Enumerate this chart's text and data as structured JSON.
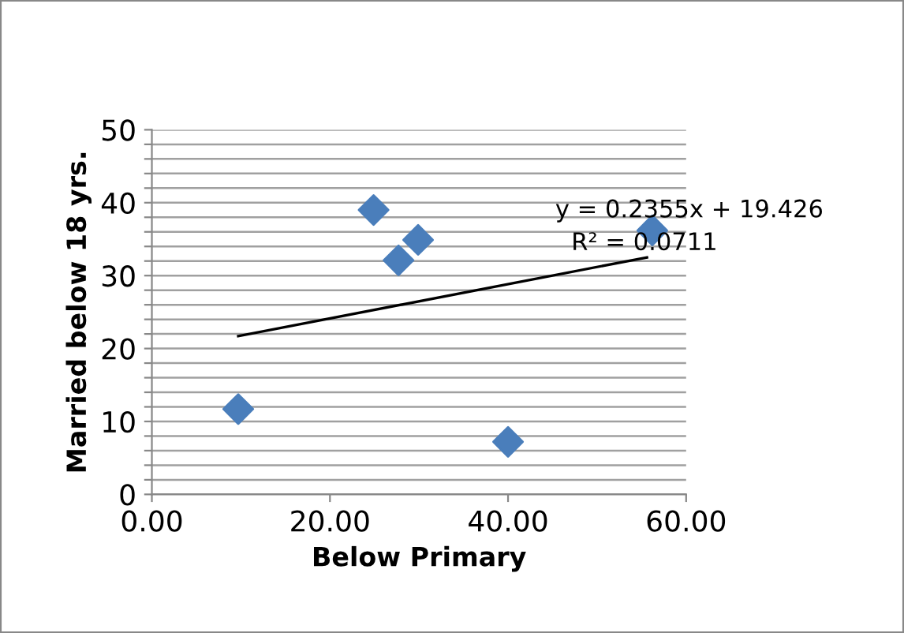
{
  "chart_data": {
    "type": "scatter",
    "xlabel": "Below Primary",
    "ylabel": "Married below 18 yrs.",
    "marker": "diamond",
    "grid": "y",
    "xlim": [
      0,
      60
    ],
    "xticks": [
      {
        "value": 0,
        "label": "0.00"
      },
      {
        "value": 20,
        "label": "20.00"
      },
      {
        "value": 40,
        "label": "40.00"
      },
      {
        "value": 60,
        "label": "60.00"
      }
    ],
    "ylim": [
      0,
      50
    ],
    "yticks": [
      0,
      {
        "value": 2,
        "label": null
      },
      {
        "value": 4,
        "label": null
      },
      {
        "value": 6,
        "label": null
      },
      {
        "value": 8,
        "label": null
      },
      10,
      {
        "value": 12,
        "label": null
      },
      {
        "value": 14,
        "label": null
      },
      {
        "value": 16,
        "label": null
      },
      {
        "value": 18,
        "label": null
      },
      20,
      {
        "value": 22,
        "label": null
      },
      {
        "value": 24,
        "label": null
      },
      {
        "value": 26,
        "label": null
      },
      {
        "value": 28,
        "label": null
      },
      30,
      {
        "value": 32,
        "label": null
      },
      {
        "value": 34,
        "label": null
      },
      {
        "value": 36,
        "label": null
      },
      {
        "value": 38,
        "label": null
      },
      40,
      {
        "value": 42,
        "label": null
      },
      {
        "value": 44,
        "label": null
      },
      {
        "value": 46,
        "label": null
      },
      {
        "value": 48,
        "label": null
      },
      50
    ],
    "series": [
      {
        "color": "#4a7ebb",
        "x": [
          9.7,
          24.9,
          27.7,
          29.9,
          40.0,
          56.2
        ],
        "values": [
          11.7,
          39.0,
          32.1,
          34.9,
          7.2,
          36.2
        ]
      },
      {
        "type": "line",
        "color": "#000000",
        "marker": "none",
        "x": [
          9.7,
          55.6
        ],
        "values": [
          21.7,
          32.5
        ]
      }
    ],
    "annotations": [
      "y = 0.2355x + 19.426",
      "R² = 0.0711"
    ]
  }
}
